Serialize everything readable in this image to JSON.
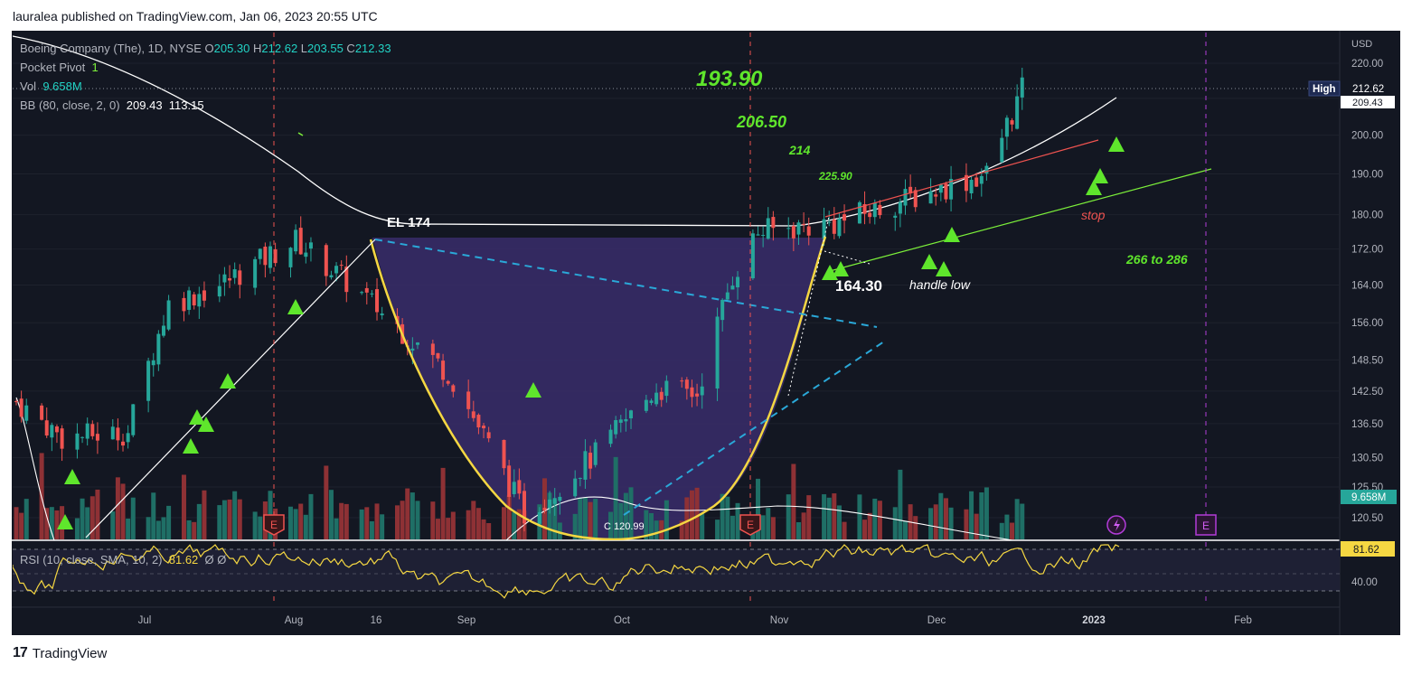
{
  "header": {
    "text": "lauralea published on TradingView.com, Jan 06, 2023 20:55 UTC"
  },
  "footer": {
    "brand": "TradingView"
  },
  "legend": {
    "symbol": "Boeing Company (The), 1D, NYSE",
    "o_label": "O",
    "o": "205.30",
    "h_label": "H",
    "h": "212.62",
    "l_label": "L",
    "l": "203.55",
    "c_label": "C",
    "c": "212.33",
    "pocket_label": "Pocket Pivot",
    "pocket": "1",
    "vol_label": "Vol",
    "vol": "9.658M",
    "bb_label": "BB (80, close, 2, 0)",
    "bb_upper": "209.43",
    "bb_lower": "113.15",
    "rsi_label": "RSI (10, close, SMA, 10, 2)",
    "rsi": "81.62",
    "rsi_extra": "Ø  Ø"
  },
  "annotations": {
    "t193": "193.90",
    "t206": "206.50",
    "t214": "214",
    "t225": "225.90",
    "el": "EL  174",
    "stop": "stop",
    "range": "266 to 286",
    "p164": "164.30",
    "handle": "handle low",
    "cup_low": "C 120.99"
  },
  "markers": {
    "earnings": "E"
  },
  "colors": {
    "pane_bg": "#131722",
    "up": "#26a69a",
    "down": "#ef5350",
    "vol_up": "#1f6f66",
    "vol_down": "#8e3135",
    "cup_fill": "#3a2d6b",
    "cup_curve": "#f5d742",
    "trend_green": "#7cf03a",
    "trend_cyan": "#2aa8d8",
    "arrow": "#5fe62c",
    "bb": "#ffffff",
    "rsi": "#f5d742"
  },
  "chart_data": {
    "type": "candlestick",
    "price_axis": {
      "unit": "USD",
      "ticks": [
        220.0,
        210.0,
        200.0,
        190.0,
        180.0,
        172.0,
        164.0,
        156.0,
        148.5,
        142.5,
        136.5,
        130.5,
        125.5,
        120.5
      ],
      "scale": "log"
    },
    "price_labels": {
      "high_label": "High",
      "high": "212.62",
      "bb_upper": "209.43",
      "volume": "9.658M"
    },
    "time_axis": {
      "ticks": [
        "Jul",
        "Aug",
        "16",
        "Sep",
        "Oct",
        "Nov",
        "Dec",
        "2023",
        "Feb"
      ]
    },
    "rsi_axis": {
      "ticks": [
        "40.00"
      ],
      "current": "81.62"
    },
    "price_waypoints": [
      {
        "date": "2022-06-22",
        "close": 140.5
      },
      {
        "date": "2022-07-01",
        "close": 134.0
      },
      {
        "date": "2022-07-14",
        "close": 135.0
      },
      {
        "date": "2022-07-22",
        "close": 160.0
      },
      {
        "date": "2022-08-01",
        "close": 164.0
      },
      {
        "date": "2022-08-16",
        "close": 174.0
      },
      {
        "date": "2022-08-31",
        "close": 160.0
      },
      {
        "date": "2022-09-15",
        "close": 146.0
      },
      {
        "date": "2022-09-30",
        "close": 121.0
      },
      {
        "date": "2022-10-14",
        "close": 131.0
      },
      {
        "date": "2022-10-26",
        "close": 143.0
      },
      {
        "date": "2022-11-03",
        "close": 142.0
      },
      {
        "date": "2022-11-10",
        "close": 166.0
      },
      {
        "date": "2022-11-15",
        "close": 176.0
      },
      {
        "date": "2022-11-30",
        "close": 178.0
      },
      {
        "date": "2022-12-15",
        "close": 184.0
      },
      {
        "date": "2022-12-30",
        "close": 190.0
      },
      {
        "date": "2023-01-06",
        "close": 212.33
      }
    ]
  }
}
